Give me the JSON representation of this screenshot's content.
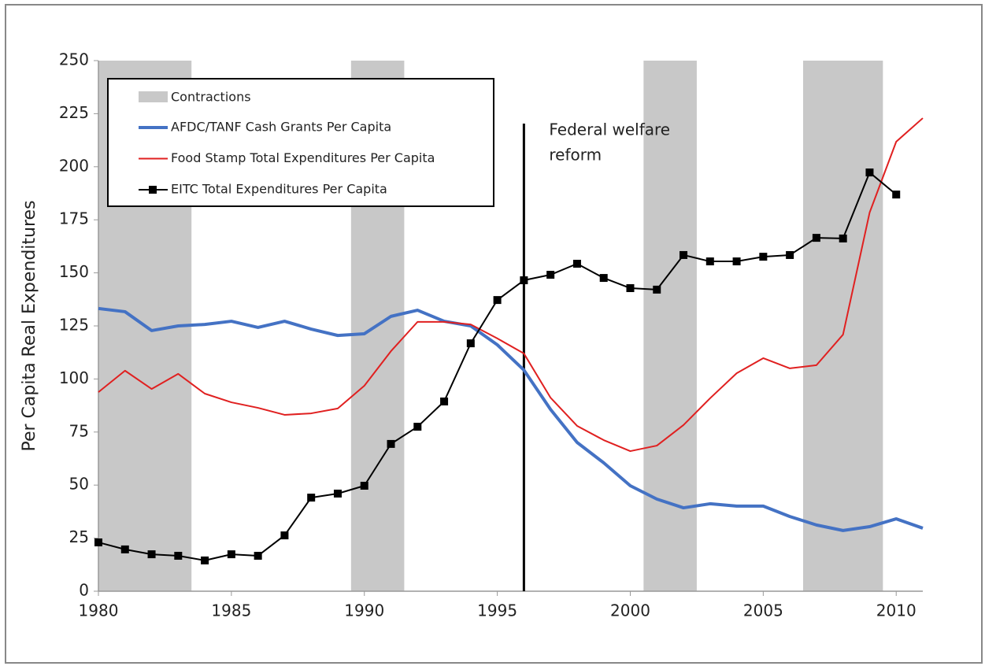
{
  "chart_data": {
    "type": "line",
    "y_label": "Per Capita Real Expenditures",
    "x": [
      1980,
      1981,
      1982,
      1983,
      1984,
      1985,
      1986,
      1987,
      1988,
      1989,
      1990,
      1991,
      1992,
      1993,
      1994,
      1995,
      1996,
      1997,
      1998,
      1999,
      2000,
      2001,
      2002,
      2003,
      2004,
      2005,
      2006,
      2007,
      2008,
      2009,
      2010,
      2011
    ],
    "series": [
      {
        "name": "AFDC/TANF Cash Grants Per Capita",
        "color": "#4472c4",
        "width": 4,
        "markers": false,
        "values": [
          133.2,
          131.7,
          122.8,
          125,
          125.7,
          127.2,
          124.3,
          127.2,
          123.5,
          120.5,
          121.3,
          129.5,
          132.4,
          127.2,
          125,
          116.1,
          104.2,
          85.7,
          70.1,
          60.5,
          49.7,
          43.4,
          39.3,
          41.2,
          40.1,
          40.1,
          35.2,
          31.2,
          28.6,
          30.4,
          34.1,
          29.7
        ]
      },
      {
        "name": "Food Stamp Total Expenditures Per Capita",
        "color": "#e02020",
        "width": 2,
        "markers": false,
        "values": [
          93.8,
          103.9,
          95.3,
          102.4,
          93.1,
          89,
          86.4,
          83.1,
          83.8,
          86.1,
          96.8,
          113.1,
          126.9,
          126.9,
          125.7,
          119.1,
          112,
          91.2,
          77.9,
          71.2,
          66,
          68.6,
          78.3,
          90.9,
          102.7,
          109.8,
          105,
          106.5,
          120.9,
          178.4,
          211.8,
          222.9
        ]
      },
      {
        "name": "EITC Total Expenditures Per Capita",
        "color": "#000000",
        "width": 2,
        "markers": true,
        "values": [
          23,
          19.7,
          17.4,
          16.7,
          14.5,
          17.4,
          16.7,
          26.3,
          44.1,
          46,
          49.7,
          69.4,
          77.5,
          89.4,
          116.8,
          137.2,
          146.5,
          149.1,
          154.3,
          147.6,
          142.8,
          142.1,
          158.4,
          155.4,
          155.4,
          157.6,
          158.4,
          166.5,
          166.2,
          197.3,
          186.9,
          null
        ]
      }
    ],
    "contractions_label": "Contractions",
    "contractions_color": "#c8c8c8",
    "contractions": [
      [
        1980,
        1983.5
      ],
      [
        1989.5,
        1991.5
      ],
      [
        2000.5,
        2002.5
      ],
      [
        2006.5,
        2009.5
      ]
    ],
    "reform_year": 1996,
    "reform_label": [
      "Federal welfare",
      "reform"
    ],
    "xlim": [
      1980,
      2011
    ],
    "xticks": [
      1980,
      1985,
      1990,
      1995,
      2000,
      2005,
      2010
    ],
    "ylim": [
      0,
      250
    ],
    "yticks": [
      0,
      25,
      50,
      75,
      100,
      125,
      150,
      175,
      200,
      225,
      250
    ],
    "grid": false,
    "legend": "upper left"
  }
}
